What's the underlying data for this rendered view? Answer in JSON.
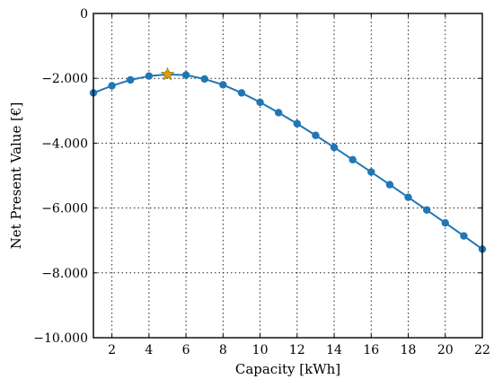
{
  "chart_data": {
    "type": "line",
    "xlabel": "Capacity [kWh]",
    "ylabel": "Net Present Value [€]",
    "xlim": [
      1,
      22
    ],
    "ylim": [
      -10000,
      0
    ],
    "grid": true,
    "x_ticks": [
      2,
      4,
      6,
      8,
      10,
      12,
      14,
      16,
      18,
      20,
      22
    ],
    "x_tick_labels": [
      "2",
      "4",
      "6",
      "8",
      "10",
      "12",
      "14",
      "16",
      "18",
      "20",
      "22"
    ],
    "y_ticks": [
      0,
      -2000,
      -4000,
      -6000,
      -8000,
      -10000
    ],
    "y_tick_labels": [
      "0",
      "−2.000",
      "−4.000",
      "−6.000",
      "−8.000",
      "−10.000"
    ],
    "series": [
      {
        "color": "#1f77b4",
        "marker": "circle",
        "x": [
          1,
          2,
          3,
          4,
          5,
          6,
          7,
          8,
          9,
          10,
          11,
          12,
          13,
          14,
          15,
          16,
          17,
          18,
          19,
          20,
          21,
          22
        ],
        "y": [
          -2450,
          -2230,
          -2050,
          -1930,
          -1880,
          -1900,
          -2020,
          -2200,
          -2450,
          -2740,
          -3060,
          -3400,
          -3760,
          -4130,
          -4510,
          -4890,
          -5280,
          -5670,
          -6060,
          -6460,
          -6860,
          -7270
        ]
      }
    ],
    "highlight": {
      "x": 5,
      "y": -1880,
      "marker": "star",
      "color": "#d4a017"
    }
  }
}
